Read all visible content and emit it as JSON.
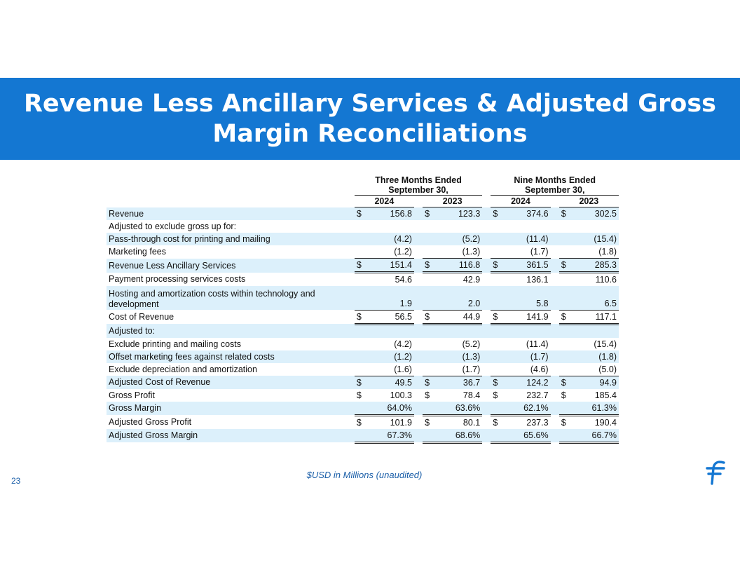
{
  "title": {
    "line1": "Revenue Less Ancillary Services & Adjusted Gross",
    "line2": "Margin Reconciliations"
  },
  "header": {
    "group1": [
      "Three Months Ended",
      "September 30,"
    ],
    "group2": [
      "Nine Months Ended",
      "September 30,"
    ],
    "years": [
      "2024",
      "2023",
      "2024",
      "2023"
    ]
  },
  "rows": [
    {
      "label": "Revenue",
      "dollar": "$",
      "values": [
        "156.8",
        "123.3",
        "374.6",
        "302.5"
      ]
    },
    {
      "label": "Adjusted to exclude gross up for:",
      "dollar": "",
      "values": [
        "",
        "",
        "",
        ""
      ]
    },
    {
      "label": "Pass-through cost for printing and mailing",
      "dollar": "",
      "values": [
        "(4.2)",
        "(5.2)",
        "(11.4)",
        "(15.4)"
      ]
    },
    {
      "label": "Marketing fees",
      "dollar": "",
      "values": [
        "(1.2)",
        "(1.3)",
        "(1.7)",
        "(1.8)"
      ]
    },
    {
      "label": "Revenue Less Ancillary Services",
      "dollar": "$",
      "values": [
        "151.4",
        "116.8",
        "361.5",
        "285.3"
      ]
    },
    {
      "label": "Payment processing services costs",
      "dollar": "",
      "values": [
        "54.6",
        "42.9",
        "136.1",
        "110.6"
      ]
    },
    {
      "label": "Hosting and amortization costs within technology and development",
      "dollar": "",
      "values": [
        "1.9",
        "2.0",
        "5.8",
        "6.5"
      ]
    },
    {
      "label": "Cost of Revenue",
      "dollar": "$",
      "values": [
        "56.5",
        "44.9",
        "141.9",
        "117.1"
      ]
    },
    {
      "label": "Adjusted to:",
      "dollar": "",
      "values": [
        "",
        "",
        "",
        ""
      ]
    },
    {
      "label": "Exclude printing and mailing costs",
      "dollar": "",
      "values": [
        "(4.2)",
        "(5.2)",
        "(11.4)",
        "(15.4)"
      ]
    },
    {
      "label": "Offset marketing fees against related costs",
      "dollar": "",
      "values": [
        "(1.2)",
        "(1.3)",
        "(1.7)",
        "(1.8)"
      ]
    },
    {
      "label": "Exclude depreciation and amortization",
      "dollar": "",
      "values": [
        "(1.6)",
        "(1.7)",
        "(4.6)",
        "(5.0)"
      ]
    },
    {
      "label": "Adjusted Cost of Revenue",
      "dollar": "$",
      "values": [
        "49.5",
        "36.7",
        "124.2",
        "94.9"
      ]
    },
    {
      "label": "Gross Profit",
      "dollar": "$",
      "values": [
        "100.3",
        "78.4",
        "232.7",
        "185.4"
      ]
    },
    {
      "label": "Gross Margin",
      "dollar": "",
      "values": [
        "64.0%",
        "63.6%",
        "62.1%",
        "61.3%"
      ]
    },
    {
      "label": "Adjusted Gross Profit",
      "dollar": "$",
      "values": [
        "101.9",
        "80.1",
        "237.3",
        "190.4"
      ]
    },
    {
      "label": "Adjusted Gross Margin",
      "dollar": "",
      "values": [
        "67.3%",
        "68.6%",
        "65.6%",
        "66.7%"
      ]
    }
  ],
  "footnote": "$USD in Millions (unaudited)",
  "page_number": "23",
  "colors": {
    "band": "#1477d2",
    "row_shade": "#dcf0fb",
    "accent_text": "#1a5ea8"
  }
}
